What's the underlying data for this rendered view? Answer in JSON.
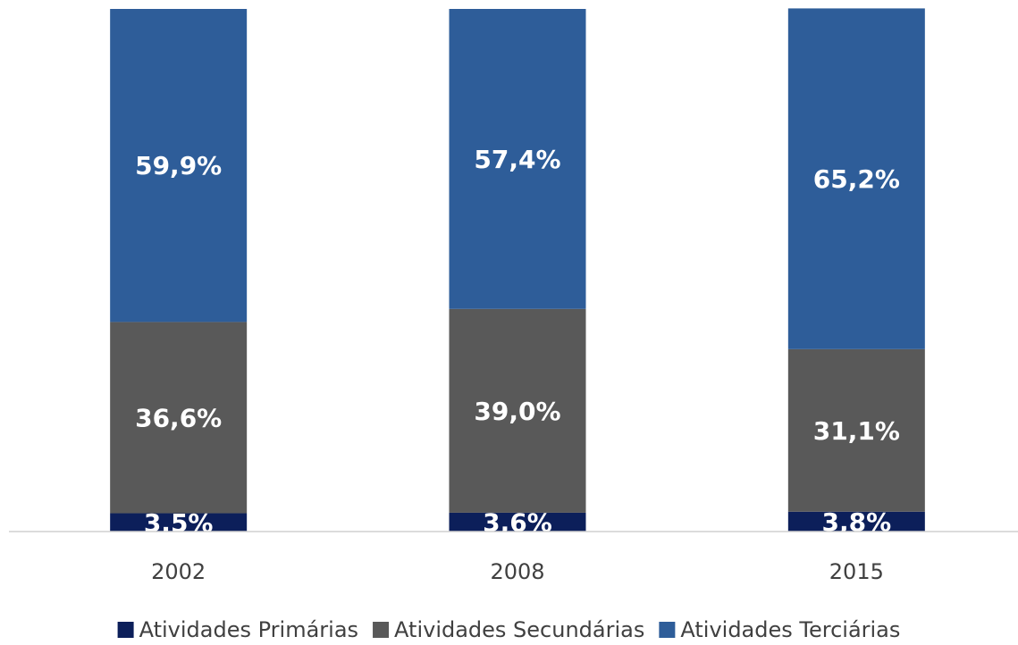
{
  "chart_data": {
    "type": "stacked_bar",
    "categories": [
      "2002",
      "2008",
      "2015"
    ],
    "series": [
      {
        "name": "Atividades Primárias",
        "color": "#0c1f5a",
        "values": [
          3.5,
          3.6,
          3.8
        ],
        "value_labels": [
          "3,5%",
          "3,6%",
          "3,8%"
        ]
      },
      {
        "name": "Atividades Secundárias",
        "color": "#595959",
        "values": [
          36.6,
          39.0,
          31.1
        ],
        "value_labels": [
          "36,6%",
          "39,0%",
          "31,1%"
        ]
      },
      {
        "name": "Atividades Terciárias",
        "color": "#2e5d99",
        "values": [
          59.9,
          57.4,
          65.2
        ],
        "value_labels": [
          "59,9%",
          "57,4%",
          "65,2%"
        ]
      }
    ],
    "ylim": [
      0,
      100
    ],
    "legend": "bottom"
  }
}
